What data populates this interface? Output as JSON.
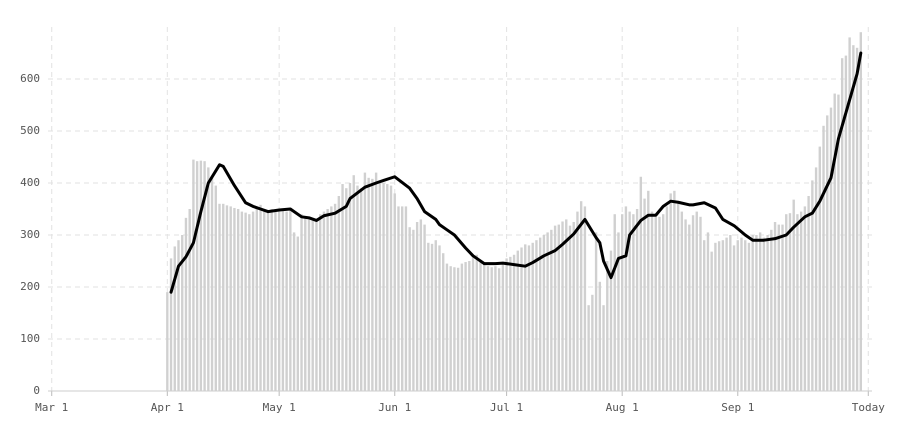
{
  "chart_data": {
    "type": "bar",
    "xlim": [
      -1,
      220
    ],
    "ylim": [
      0,
      700
    ],
    "xticks": [
      {
        "value": 0,
        "label": "Mar 1"
      },
      {
        "value": 31,
        "label": "Apr 1"
      },
      {
        "value": 61,
        "label": "May 1"
      },
      {
        "value": 92,
        "label": "Jun 1"
      },
      {
        "value": 122,
        "label": "Jul 1"
      },
      {
        "value": 153,
        "label": "Aug 1"
      },
      {
        "value": 184,
        "label": "Sep 1"
      },
      {
        "value": 219,
        "label": "Today"
      }
    ],
    "yticks": [
      0,
      100,
      200,
      300,
      400,
      500,
      600
    ],
    "grid": true,
    "series": [
      {
        "type": "bar",
        "color": "#d0d0d0",
        "x": [
          31,
          32,
          33,
          34,
          35,
          36,
          37,
          38,
          39,
          40,
          41,
          42,
          43,
          44,
          45,
          46,
          47,
          48,
          49,
          50,
          51,
          52,
          53,
          54,
          55,
          56,
          57,
          58,
          59,
          60,
          61,
          62,
          63,
          64,
          65,
          66,
          67,
          68,
          69,
          70,
          71,
          72,
          73,
          74,
          75,
          76,
          77,
          78,
          79,
          80,
          81,
          82,
          83,
          84,
          85,
          86,
          87,
          88,
          89,
          90,
          91,
          92,
          93,
          94,
          95,
          96,
          97,
          98,
          99,
          100,
          101,
          102,
          103,
          104,
          105,
          106,
          107,
          108,
          109,
          110,
          111,
          112,
          113,
          114,
          115,
          116,
          117,
          118,
          119,
          120,
          121,
          122,
          123,
          124,
          125,
          126,
          127,
          128,
          129,
          130,
          131,
          132,
          133,
          134,
          135,
          136,
          137,
          138,
          139,
          140,
          141,
          142,
          143,
          144,
          145,
          146,
          147,
          148,
          149,
          150,
          151,
          152,
          153,
          154,
          155,
          156,
          157,
          158,
          159,
          160,
          161,
          162,
          163,
          164,
          165,
          166,
          167,
          168,
          169,
          170,
          171,
          172,
          173,
          174,
          175,
          176,
          177,
          178,
          179,
          180,
          181,
          182,
          183,
          184,
          185,
          186,
          187,
          188,
          189,
          190,
          191,
          192,
          193,
          194,
          195,
          196,
          197,
          198,
          199,
          200,
          201,
          202,
          203,
          204,
          205,
          206,
          207,
          208,
          209,
          210,
          211,
          212,
          213,
          214,
          215,
          216,
          217
        ],
        "values": [
          190,
          255,
          278,
          290,
          300,
          333,
          350,
          445,
          442,
          443,
          442,
          430,
          410,
          395,
          360,
          360,
          357,
          355,
          352,
          350,
          345,
          343,
          340,
          345,
          350,
          358,
          350,
          345,
          350,
          348,
          350,
          348,
          345,
          350,
          305,
          297,
          340,
          335,
          330,
          328,
          330,
          340,
          345,
          350,
          355,
          360,
          375,
          398,
          390,
          400,
          415,
          395,
          390,
          420,
          410,
          408,
          420,
          405,
          400,
          398,
          395,
          380,
          355,
          355,
          355,
          315,
          310,
          325,
          330,
          320,
          285,
          283,
          290,
          280,
          265,
          245,
          240,
          238,
          237,
          245,
          248,
          250,
          258,
          262,
          248,
          245,
          240,
          238,
          240,
          236,
          245,
          255,
          258,
          262,
          270,
          276,
          282,
          280,
          285,
          290,
          295,
          300,
          305,
          310,
          318,
          320,
          326,
          330,
          318,
          325,
          345,
          365,
          355,
          165,
          185,
          305,
          210,
          165,
          250,
          270,
          340,
          305,
          340,
          355,
          345,
          340,
          350,
          412,
          370,
          385,
          345,
          335,
          335,
          340,
          355,
          380,
          385,
          365,
          345,
          330,
          320,
          338,
          345,
          335,
          290,
          305,
          268,
          285,
          288,
          290,
          295,
          300,
          280,
          290,
          295,
          290,
          285,
          300,
          300,
          305,
          295,
          300,
          310,
          325,
          320,
          320,
          340,
          342,
          368,
          340,
          345,
          355,
          375,
          405,
          430,
          470,
          510,
          530,
          545,
          572,
          570,
          640,
          645,
          680,
          665,
          660,
          690
        ]
      },
      {
        "type": "line",
        "color": "#000000",
        "x": [
          32,
          34,
          36,
          38,
          40,
          42,
          45,
          46,
          49,
          52,
          54,
          56,
          58,
          61,
          64,
          67,
          69,
          71,
          73,
          76,
          79,
          80,
          84,
          87,
          89,
          92,
          96,
          98,
          100,
          103,
          104,
          106,
          108,
          111,
          113,
          116,
          119,
          121,
          124,
          127,
          129,
          132,
          135,
          137,
          140,
          143,
          146,
          147,
          148,
          150,
          152,
          154,
          155,
          158,
          160,
          162,
          164,
          166,
          168,
          171,
          172,
          175,
          178,
          180,
          183,
          186,
          188,
          191,
          194,
          197,
          199,
          202,
          204,
          206,
          209,
          211,
          214,
          216,
          217
        ],
        "values": [
          190,
          240,
          258,
          285,
          345,
          400,
          435,
          432,
          395,
          362,
          355,
          350,
          345,
          348,
          350,
          335,
          333,
          328,
          337,
          342,
          355,
          370,
          392,
          400,
          405,
          412,
          390,
          370,
          345,
          330,
          320,
          310,
          300,
          275,
          260,
          245,
          245,
          246,
          243,
          240,
          247,
          260,
          270,
          282,
          302,
          330,
          295,
          285,
          250,
          218,
          255,
          260,
          300,
          328,
          338,
          338,
          355,
          365,
          363,
          358,
          358,
          362,
          352,
          330,
          318,
          300,
          290,
          290,
          293,
          300,
          315,
          335,
          342,
          365,
          410,
          485,
          560,
          610,
          650
        ]
      }
    ]
  }
}
